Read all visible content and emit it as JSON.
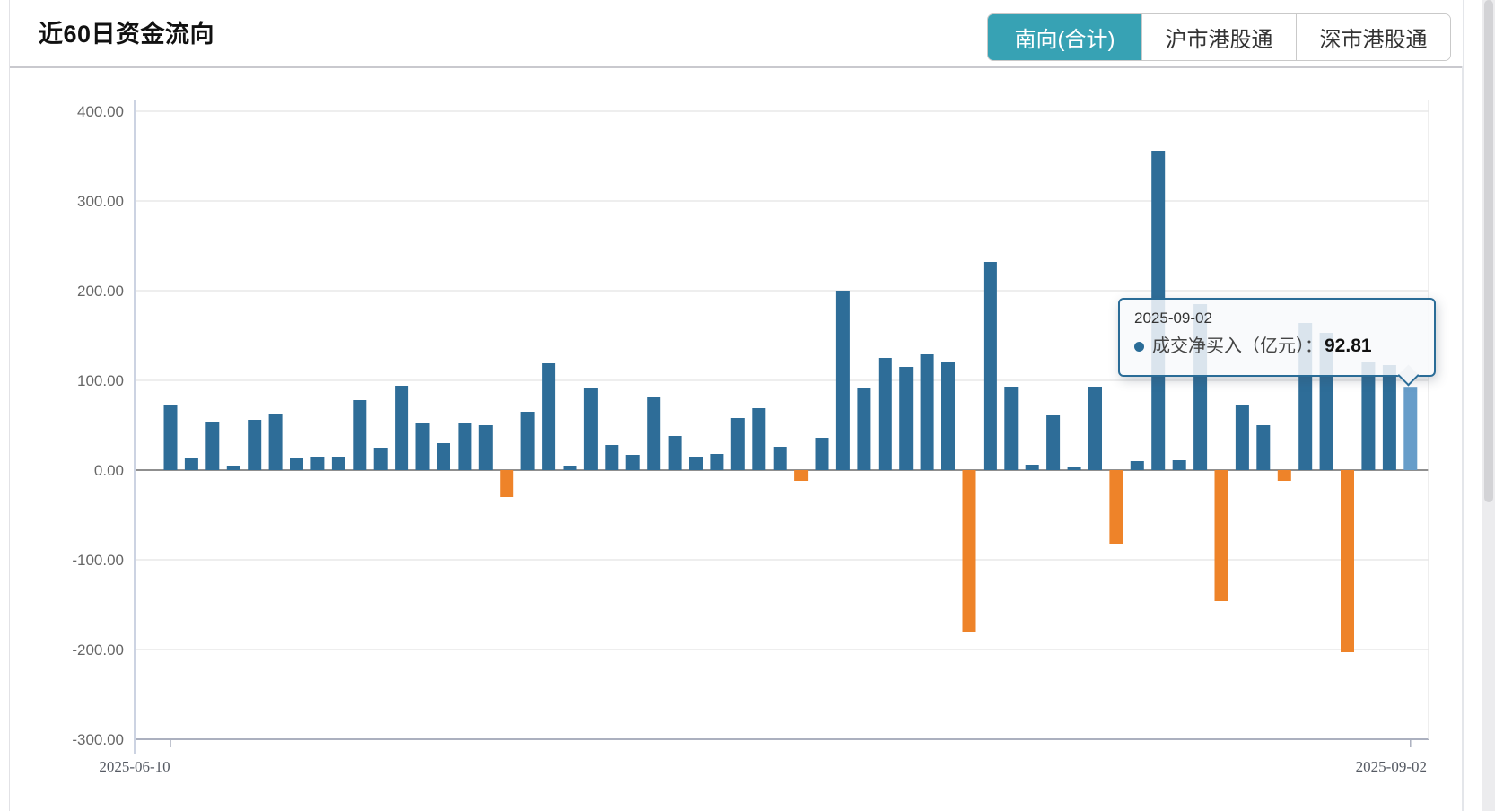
{
  "header": {
    "title": "近60日资金流向",
    "tabs": [
      {
        "label": "南向(合计)",
        "active": true
      },
      {
        "label": "沪市港股通",
        "active": false
      },
      {
        "label": "深市港股通",
        "active": false
      }
    ]
  },
  "tooltip": {
    "date": "2025-09-02",
    "label": "成交净买入（亿元）：",
    "value": "92.81"
  },
  "colors": {
    "tab_active_bg": "#37a2b4",
    "bar_positive": "#2e6d98",
    "bar_negative": "#ee8329",
    "bar_highlight": "#679dc9",
    "tooltip_border": "#2a6c97",
    "grid_line": "#e8e8e8",
    "zero_line": "#8f8f8f",
    "x_axis_line": "#abb0bf",
    "y_axis_line": "#ccd3e2",
    "y_label_color": "#666666",
    "x_label_color": "#555a63"
  },
  "chart_data": {
    "type": "bar",
    "title": "近60日资金流向",
    "series": [
      {
        "name": "成交净买入（亿元）",
        "values": [
          73,
          13,
          54,
          5,
          56,
          62,
          13,
          15,
          15,
          78,
          25,
          94,
          53,
          30,
          52,
          50,
          -30,
          65,
          119,
          5,
          92,
          28,
          17,
          82,
          38,
          15,
          18,
          58,
          69,
          26,
          -12,
          36,
          200,
          91,
          125,
          115,
          129,
          121,
          -180,
          232,
          93,
          6,
          61,
          3,
          93,
          -82,
          10,
          356,
          11,
          185,
          -146,
          73,
          50,
          -12,
          164,
          153,
          -203,
          120,
          117,
          92.81
        ]
      }
    ],
    "highlight_index": 59,
    "x_axis": {
      "num_points": 60,
      "first_label": "2025-06-10",
      "last_label": "2025-09-02"
    },
    "y_axis": {
      "min": -300,
      "max": 400,
      "tick_values": [
        400,
        300,
        200,
        100,
        0,
        -100,
        -200,
        -300
      ],
      "tick_labels": [
        "400.00",
        "300.00",
        "200.00",
        "100.00",
        "0.00",
        "-100.00",
        "-200.00",
        "-300.00"
      ]
    },
    "grid": true,
    "legend_position": "none"
  }
}
